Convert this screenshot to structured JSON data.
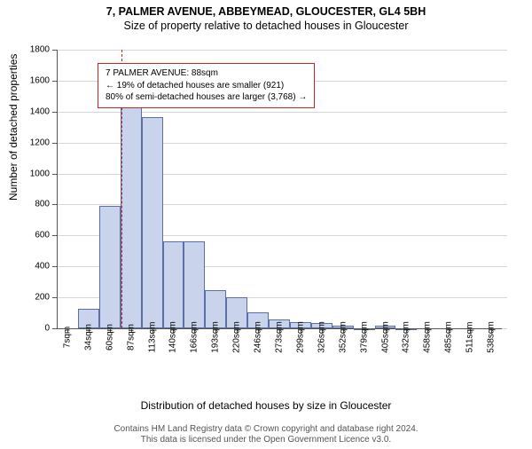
{
  "titles": {
    "line1": "7, PALMER AVENUE, ABBEYMEAD, GLOUCESTER, GL4 5BH",
    "line2": "Size of property relative to detached houses in Gloucester"
  },
  "ylabel": "Number of detached properties",
  "xlabel": "Distribution of detached houses by size in Gloucester",
  "footnote": {
    "line1": "Contains HM Land Registry data © Crown copyright and database right 2024.",
    "line2": "This data is licensed under the Open Government Licence v3.0."
  },
  "annotation": {
    "line1": "7 PALMER AVENUE: 88sqm",
    "line2": "← 19% of detached houses are smaller (921)",
    "line3": "80% of semi-detached houses are larger (3,768) →"
  },
  "chart": {
    "type": "histogram",
    "ylim": [
      0,
      1800
    ],
    "ytick_step": 200,
    "xtick_labels": [
      "7sqm",
      "34sqm",
      "60sqm",
      "87sqm",
      "113sqm",
      "140sqm",
      "166sqm",
      "193sqm",
      "220sqm",
      "246sqm",
      "273sqm",
      "299sqm",
      "326sqm",
      "352sqm",
      "379sqm",
      "405sqm",
      "432sqm",
      "458sqm",
      "485sqm",
      "511sqm",
      "538sqm"
    ],
    "values": [
      0,
      125,
      790,
      1470,
      1365,
      560,
      560,
      245,
      200,
      105,
      60,
      40,
      35,
      15,
      2,
      15,
      2,
      0,
      0,
      0,
      0
    ],
    "bar_fill": "#c9d4ec",
    "bar_border": "#5a6fa3",
    "grid_color": "#d6d6d6",
    "axis_color": "#555555",
    "marker_color": "#cc2222",
    "marker_x_index": 3.04,
    "background_color": "#ffffff",
    "label_fontsize": 12,
    "tick_fontsize": 10,
    "annotation_fontsize": 10
  }
}
